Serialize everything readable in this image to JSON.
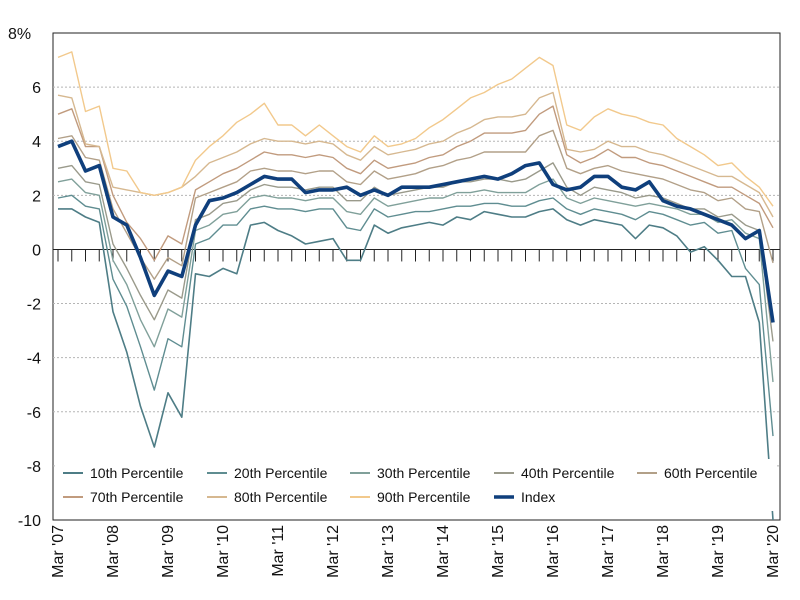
{
  "chart_data": {
    "type": "line",
    "ylim": [
      -10,
      8
    ],
    "y_ticks": [
      -10,
      -8,
      -6,
      -4,
      -2,
      0,
      2,
      4,
      6
    ],
    "y_top_label": "8%",
    "y_tick_labels": [
      "-10",
      "-8",
      "-6",
      "-4",
      "-2",
      "0",
      "2",
      "4",
      "6"
    ],
    "x_labels": [
      "Mar '07",
      "Mar '08",
      "Mar '09",
      "Mar '10",
      "Mar '11",
      "Mar '12",
      "Mar '13",
      "Mar '14",
      "Mar '15",
      "Mar '16",
      "Mar '17",
      "Mar '18",
      "Mar '19",
      "Mar '20"
    ],
    "x_label_positions": [
      0,
      4,
      8,
      12,
      16,
      20,
      24,
      28,
      32,
      36,
      40,
      44,
      48,
      52
    ],
    "grid": "horizontal dotted",
    "legend_position": "bottom",
    "series": [
      {
        "name": "10th Percentile",
        "color": "#4e7d86",
        "width": 1.6,
        "values": [
          1.5,
          1.5,
          1.2,
          1.0,
          -2.3,
          -3.8,
          -5.8,
          -7.3,
          -5.3,
          -6.2,
          -0.9,
          -1.0,
          -0.7,
          -0.9,
          0.9,
          1.0,
          0.7,
          0.5,
          0.2,
          0.3,
          0.4,
          -0.4,
          -0.4,
          0.9,
          0.6,
          0.8,
          0.9,
          1.0,
          0.9,
          1.2,
          1.1,
          1.4,
          1.3,
          1.2,
          1.2,
          1.4,
          1.5,
          1.1,
          0.9,
          1.1,
          1.0,
          0.9,
          0.4,
          0.9,
          0.8,
          0.5,
          -0.1,
          0.1,
          -0.4,
          -1.0,
          -1.0,
          -2.7,
          -10.0
        ]
      },
      {
        "name": "20th Percentile",
        "color": "#5f8d91",
        "width": 1.4,
        "values": [
          1.9,
          2.0,
          1.6,
          1.5,
          -1.1,
          -2.1,
          -3.6,
          -5.2,
          -3.3,
          -3.6,
          0.2,
          0.4,
          0.9,
          0.9,
          1.5,
          1.6,
          1.5,
          1.5,
          1.4,
          1.5,
          1.5,
          0.8,
          0.7,
          1.5,
          1.2,
          1.3,
          1.4,
          1.4,
          1.5,
          1.6,
          1.6,
          1.7,
          1.7,
          1.6,
          1.6,
          1.8,
          1.9,
          1.5,
          1.3,
          1.5,
          1.4,
          1.3,
          1.1,
          1.4,
          1.3,
          1.1,
          0.9,
          1.0,
          0.6,
          0.7,
          -0.7,
          -1.3,
          -6.9
        ]
      },
      {
        "name": "30th Percentile",
        "color": "#80a09a",
        "width": 1.4,
        "values": [
          2.5,
          2.6,
          2.1,
          2.0,
          -0.4,
          -1.3,
          -2.6,
          -3.6,
          -2.2,
          -2.5,
          0.7,
          0.9,
          1.3,
          1.4,
          1.9,
          2.0,
          1.9,
          1.9,
          1.8,
          1.9,
          1.9,
          1.4,
          1.3,
          1.9,
          1.6,
          1.7,
          1.8,
          1.9,
          1.9,
          2.1,
          2.1,
          2.2,
          2.1,
          2.1,
          2.1,
          2.4,
          2.6,
          1.9,
          1.7,
          1.9,
          1.8,
          1.7,
          1.6,
          1.7,
          1.6,
          1.5,
          1.3,
          1.3,
          1.0,
          1.1,
          0.6,
          0.4,
          -4.9
        ]
      },
      {
        "name": "40th Percentile",
        "color": "#9a9a8b",
        "width": 1.4,
        "values": [
          3.0,
          3.1,
          2.5,
          2.4,
          0.2,
          -0.7,
          -1.7,
          -2.6,
          -1.5,
          -1.8,
          1.1,
          1.3,
          1.7,
          1.8,
          2.2,
          2.4,
          2.3,
          2.3,
          2.2,
          2.3,
          2.3,
          1.8,
          1.8,
          2.3,
          2.0,
          2.1,
          2.2,
          2.3,
          2.3,
          2.5,
          2.5,
          2.6,
          2.6,
          2.5,
          2.6,
          2.9,
          3.2,
          2.3,
          2.0,
          2.3,
          2.2,
          2.1,
          1.9,
          2.0,
          1.9,
          1.7,
          1.5,
          1.5,
          1.2,
          1.3,
          0.9,
          0.7,
          -3.4
        ]
      },
      {
        "name": "60th Percentile",
        "color": "#b2a088",
        "width": 1.4,
        "values": [
          4.1,
          4.2,
          3.4,
          3.3,
          1.5,
          0.6,
          -0.3,
          -1.1,
          -0.3,
          -0.6,
          1.9,
          2.1,
          2.3,
          2.5,
          2.9,
          3.0,
          2.9,
          2.9,
          2.8,
          2.9,
          2.9,
          2.5,
          2.4,
          2.9,
          2.6,
          2.7,
          2.8,
          3.0,
          3.1,
          3.3,
          3.4,
          3.6,
          3.6,
          3.6,
          3.6,
          4.2,
          4.4,
          3.0,
          2.8,
          3.0,
          3.1,
          2.9,
          2.8,
          2.7,
          2.6,
          2.4,
          2.2,
          2.1,
          1.8,
          1.9,
          1.5,
          1.4,
          -0.5
        ]
      },
      {
        "name": "70th Percentile",
        "color": "#c19b7e",
        "width": 1.4,
        "values": [
          5.0,
          5.2,
          3.8,
          3.8,
          2.0,
          1.0,
          0.4,
          -0.4,
          0.5,
          0.2,
          2.2,
          2.5,
          2.8,
          3.0,
          3.3,
          3.6,
          3.5,
          3.5,
          3.4,
          3.5,
          3.4,
          3.0,
          2.8,
          3.3,
          3.0,
          3.1,
          3.2,
          3.4,
          3.5,
          3.8,
          4.0,
          4.3,
          4.3,
          4.3,
          4.4,
          5.0,
          5.3,
          3.5,
          3.2,
          3.4,
          3.7,
          3.4,
          3.4,
          3.2,
          3.1,
          2.9,
          2.7,
          2.5,
          2.3,
          2.3,
          2.0,
          1.7,
          0.8
        ]
      },
      {
        "name": "80th Percentile",
        "color": "#d6b890",
        "width": 1.4,
        "values": [
          5.7,
          5.6,
          3.9,
          3.8,
          2.3,
          2.2,
          2.1,
          2.0,
          2.1,
          2.3,
          2.7,
          3.2,
          3.4,
          3.6,
          3.9,
          4.1,
          4.0,
          4.0,
          3.9,
          4.0,
          3.9,
          3.5,
          3.3,
          3.8,
          3.5,
          3.6,
          3.7,
          3.9,
          4.0,
          4.3,
          4.5,
          4.8,
          4.9,
          4.9,
          5.0,
          5.6,
          5.8,
          3.7,
          3.6,
          3.7,
          4.0,
          3.8,
          3.8,
          3.6,
          3.5,
          3.3,
          3.1,
          2.9,
          2.7,
          2.7,
          2.4,
          2.1,
          1.2
        ]
      },
      {
        "name": "90th Percentile",
        "color": "#f2c98c",
        "width": 1.4,
        "values": [
          7.1,
          7.3,
          5.1,
          5.3,
          3.0,
          2.9,
          2.1,
          2.0,
          2.1,
          2.3,
          3.3,
          3.8,
          4.2,
          4.7,
          5.0,
          5.4,
          4.6,
          4.6,
          4.2,
          4.6,
          4.2,
          3.8,
          3.6,
          4.2,
          3.8,
          3.9,
          4.1,
          4.5,
          4.8,
          5.2,
          5.6,
          5.8,
          6.1,
          6.3,
          6.7,
          7.1,
          6.8,
          4.6,
          4.4,
          4.9,
          5.2,
          5.0,
          4.9,
          4.7,
          4.6,
          4.1,
          3.8,
          3.5,
          3.1,
          3.2,
          2.7,
          2.3,
          1.6
        ]
      },
      {
        "name": "Index",
        "color": "#0f3f7c",
        "width": 3.6,
        "values": [
          3.8,
          4.0,
          2.9,
          3.1,
          1.2,
          0.9,
          -0.3,
          -1.7,
          -0.8,
          -1.0,
          0.9,
          1.8,
          1.9,
          2.1,
          2.4,
          2.7,
          2.6,
          2.6,
          2.1,
          2.2,
          2.2,
          2.3,
          2.0,
          2.2,
          2.0,
          2.3,
          2.3,
          2.3,
          2.4,
          2.5,
          2.6,
          2.7,
          2.6,
          2.8,
          3.1,
          3.2,
          2.4,
          2.2,
          2.3,
          2.7,
          2.7,
          2.3,
          2.2,
          2.5,
          1.8,
          1.6,
          1.5,
          1.3,
          1.1,
          0.9,
          0.4,
          0.7,
          -2.7
        ]
      }
    ]
  }
}
